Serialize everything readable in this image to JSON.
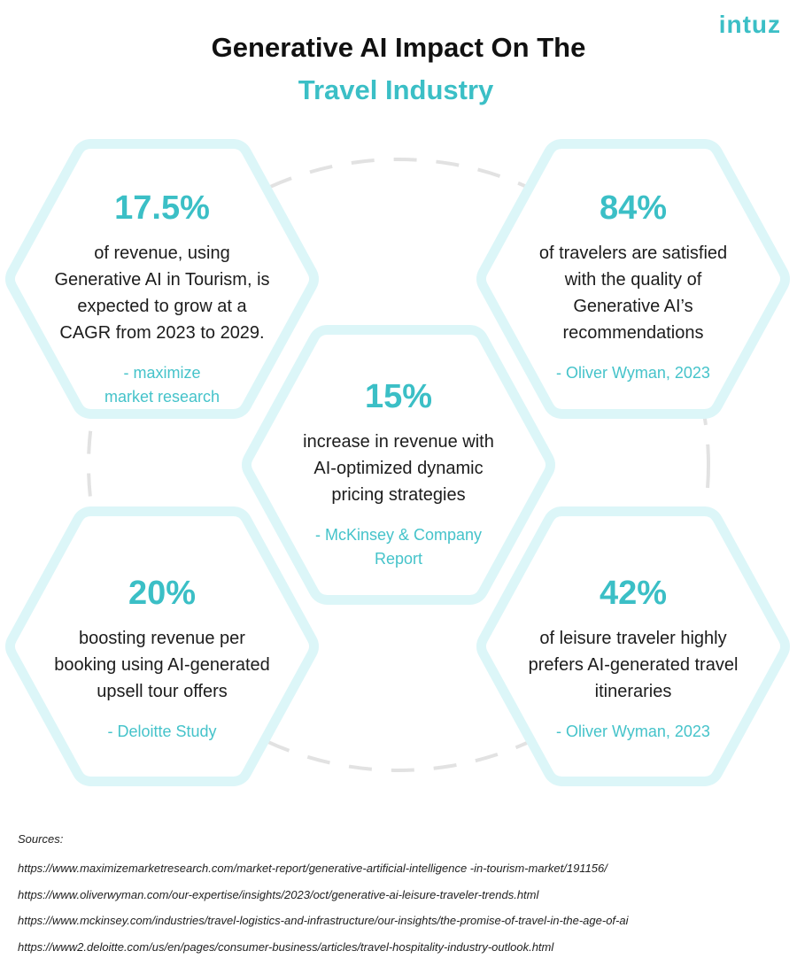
{
  "header": {
    "title_line1": "Generative AI Impact On The",
    "title_line2": "Travel Industry",
    "logo": "intuz"
  },
  "stats": [
    {
      "value": "17.5%",
      "description": [
        "of revenue, using",
        "Generative AI in Tourism, is",
        "expected to grow at a",
        "CAGR from 2023 to 2029."
      ],
      "source": [
        "- maximize",
        "market research"
      ]
    },
    {
      "value": "84%",
      "description": [
        "of travelers are satisfied",
        "with the quality of",
        "Generative AI’s",
        "recommendations"
      ],
      "source": [
        "- Oliver Wyman, 2023"
      ]
    },
    {
      "value": "15%",
      "description": [
        "increase in revenue with",
        "AI-optimized dynamic",
        "pricing strategies"
      ],
      "source": [
        "- McKinsey & Company",
        "Report"
      ]
    },
    {
      "value": "20%",
      "description": [
        "boosting revenue per",
        "booking using AI-generated",
        "upsell tour offers"
      ],
      "source": [
        "- Deloitte Study"
      ]
    },
    {
      "value": "42%",
      "description": [
        "of leisure traveler highly",
        "prefers AI-generated travel",
        "itineraries"
      ],
      "source": [
        "- Oliver Wyman, 2023"
      ]
    }
  ],
  "sources": {
    "label": "Sources:",
    "urls": [
      "https://www.maximizemarketresearch.com/market-report/generative-artificial-intelligence -in-tourism-market/191156/",
      "https://www.oliverwyman.com/our-expertise/insights/2023/oct/generative-ai-leisure-traveler-trends.html",
      "https://www.mckinsey.com/industries/travel-logistics-and-infrastructure/our-insights/the-promise-of-travel-in-the-age-of-ai",
      "https://www2.deloitte.com/us/en/pages/consumer-business/articles/travel-hospitality-industry-outlook.html"
    ]
  }
}
